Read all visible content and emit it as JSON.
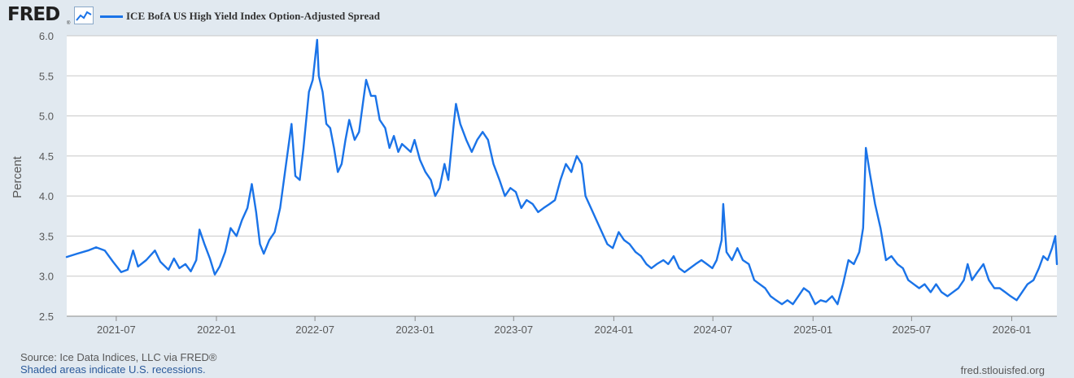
{
  "header": {
    "logo_text": "FRED",
    "logo_reg": "®",
    "legend_label": "ICE BofA US High Yield Index Option-Adjusted Spread",
    "series_color": "#1a73e8",
    "logo_icon": "line-chart-icon"
  },
  "footer": {
    "source": "Source: Ice Data Indices, LLC via FRED®",
    "recession_note": "Shaded areas indicate U.S. recessions.",
    "site_url": "fred.stlouisfed.org"
  },
  "chart_data": {
    "type": "line",
    "title": "",
    "xlabel": "",
    "ylabel": "Percent",
    "ylim": [
      2.5,
      6.0
    ],
    "xlim": [
      "2021-04-01",
      "2026-03-25"
    ],
    "yticks": [
      "2.5",
      "3.0",
      "3.5",
      "4.0",
      "4.5",
      "5.0",
      "5.5",
      "6.0"
    ],
    "xticks": [
      {
        "date": "2021-07-01",
        "label": "2021-07"
      },
      {
        "date": "2022-01-01",
        "label": "2022-01"
      },
      {
        "date": "2022-07-01",
        "label": "2022-07"
      },
      {
        "date": "2023-01-01",
        "label": "2023-01"
      },
      {
        "date": "2023-07-01",
        "label": "2023-07"
      },
      {
        "date": "2024-01-01",
        "label": "2024-01"
      },
      {
        "date": "2024-07-01",
        "label": "2024-07"
      },
      {
        "date": "2025-01-01",
        "label": "2025-01"
      },
      {
        "date": "2025-07-01",
        "label": "2025-07"
      },
      {
        "date": "2026-01-01",
        "label": "2026-01"
      }
    ],
    "grid": true,
    "legend": "top-left",
    "series": [
      {
        "name": "ICE BofA US High Yield Index Option-Adjusted Spread",
        "color": "#1a73e8",
        "points": [
          [
            "2021-04-01",
            3.24
          ],
          [
            "2021-04-20",
            3.28
          ],
          [
            "2021-05-10",
            3.32
          ],
          [
            "2021-05-25",
            3.36
          ],
          [
            "2021-06-10",
            3.32
          ],
          [
            "2021-06-25",
            3.18
          ],
          [
            "2021-07-10",
            3.05
          ],
          [
            "2021-07-22",
            3.08
          ],
          [
            "2021-08-01",
            3.32
          ],
          [
            "2021-08-10",
            3.12
          ],
          [
            "2021-08-25",
            3.2
          ],
          [
            "2021-09-10",
            3.32
          ],
          [
            "2021-09-20",
            3.18
          ],
          [
            "2021-10-05",
            3.08
          ],
          [
            "2021-10-15",
            3.22
          ],
          [
            "2021-10-25",
            3.1
          ],
          [
            "2021-11-05",
            3.15
          ],
          [
            "2021-11-15",
            3.06
          ],
          [
            "2021-11-25",
            3.2
          ],
          [
            "2021-12-01",
            3.58
          ],
          [
            "2021-12-10",
            3.4
          ],
          [
            "2021-12-20",
            3.22
          ],
          [
            "2021-12-29",
            3.02
          ],
          [
            "2022-01-07",
            3.12
          ],
          [
            "2022-01-17",
            3.3
          ],
          [
            "2022-01-27",
            3.6
          ],
          [
            "2022-02-07",
            3.5
          ],
          [
            "2022-02-17",
            3.7
          ],
          [
            "2022-02-27",
            3.85
          ],
          [
            "2022-03-07",
            4.15
          ],
          [
            "2022-03-15",
            3.8
          ],
          [
            "2022-03-22",
            3.4
          ],
          [
            "2022-03-29",
            3.28
          ],
          [
            "2022-04-08",
            3.45
          ],
          [
            "2022-04-18",
            3.55
          ],
          [
            "2022-04-28",
            3.85
          ],
          [
            "2022-05-09",
            4.4
          ],
          [
            "2022-05-19",
            4.9
          ],
          [
            "2022-05-26",
            4.25
          ],
          [
            "2022-06-03",
            4.2
          ],
          [
            "2022-06-10",
            4.6
          ],
          [
            "2022-06-20",
            5.3
          ],
          [
            "2022-06-27",
            5.45
          ],
          [
            "2022-07-05",
            5.95
          ],
          [
            "2022-07-08",
            5.5
          ],
          [
            "2022-07-15",
            5.3
          ],
          [
            "2022-07-22",
            4.9
          ],
          [
            "2022-07-29",
            4.85
          ],
          [
            "2022-08-05",
            4.6
          ],
          [
            "2022-08-12",
            4.3
          ],
          [
            "2022-08-19",
            4.4
          ],
          [
            "2022-08-26",
            4.7
          ],
          [
            "2022-09-02",
            4.95
          ],
          [
            "2022-09-12",
            4.7
          ],
          [
            "2022-09-20",
            4.8
          ],
          [
            "2022-09-28",
            5.2
          ],
          [
            "2022-10-03",
            5.45
          ],
          [
            "2022-10-12",
            5.25
          ],
          [
            "2022-10-20",
            5.25
          ],
          [
            "2022-10-28",
            4.95
          ],
          [
            "2022-11-07",
            4.85
          ],
          [
            "2022-11-15",
            4.6
          ],
          [
            "2022-11-23",
            4.75
          ],
          [
            "2022-12-01",
            4.55
          ],
          [
            "2022-12-08",
            4.65
          ],
          [
            "2022-12-16",
            4.6
          ],
          [
            "2022-12-24",
            4.55
          ],
          [
            "2022-12-31",
            4.7
          ],
          [
            "2023-01-10",
            4.45
          ],
          [
            "2023-01-20",
            4.3
          ],
          [
            "2023-01-30",
            4.2
          ],
          [
            "2023-02-07",
            4.0
          ],
          [
            "2023-02-15",
            4.1
          ],
          [
            "2023-02-24",
            4.4
          ],
          [
            "2023-03-03",
            4.2
          ],
          [
            "2023-03-13",
            4.9
          ],
          [
            "2023-03-17",
            5.15
          ],
          [
            "2023-03-25",
            4.9
          ],
          [
            "2023-04-05",
            4.7
          ],
          [
            "2023-04-15",
            4.55
          ],
          [
            "2023-04-25",
            4.7
          ],
          [
            "2023-05-05",
            4.8
          ],
          [
            "2023-05-15",
            4.7
          ],
          [
            "2023-05-25",
            4.4
          ],
          [
            "2023-06-05",
            4.2
          ],
          [
            "2023-06-15",
            4.0
          ],
          [
            "2023-06-25",
            4.1
          ],
          [
            "2023-07-05",
            4.05
          ],
          [
            "2023-07-15",
            3.85
          ],
          [
            "2023-07-25",
            3.95
          ],
          [
            "2023-08-05",
            3.9
          ],
          [
            "2023-08-15",
            3.8
          ],
          [
            "2023-08-25",
            3.85
          ],
          [
            "2023-09-05",
            3.9
          ],
          [
            "2023-09-15",
            3.95
          ],
          [
            "2023-09-25",
            4.2
          ],
          [
            "2023-10-05",
            4.4
          ],
          [
            "2023-10-15",
            4.3
          ],
          [
            "2023-10-25",
            4.5
          ],
          [
            "2023-11-03",
            4.4
          ],
          [
            "2023-11-10",
            4.0
          ],
          [
            "2023-11-20",
            3.85
          ],
          [
            "2023-11-30",
            3.7
          ],
          [
            "2023-12-10",
            3.55
          ],
          [
            "2023-12-20",
            3.4
          ],
          [
            "2023-12-30",
            3.35
          ],
          [
            "2024-01-10",
            3.55
          ],
          [
            "2024-01-20",
            3.45
          ],
          [
            "2024-01-30",
            3.4
          ],
          [
            "2024-02-10",
            3.3
          ],
          [
            "2024-02-20",
            3.25
          ],
          [
            "2024-03-01",
            3.15
          ],
          [
            "2024-03-10",
            3.1
          ],
          [
            "2024-03-20",
            3.15
          ],
          [
            "2024-04-01",
            3.2
          ],
          [
            "2024-04-10",
            3.15
          ],
          [
            "2024-04-20",
            3.25
          ],
          [
            "2024-04-30",
            3.1
          ],
          [
            "2024-05-10",
            3.05
          ],
          [
            "2024-05-20",
            3.1
          ],
          [
            "2024-05-30",
            3.15
          ],
          [
            "2024-06-10",
            3.2
          ],
          [
            "2024-06-20",
            3.15
          ],
          [
            "2024-06-30",
            3.1
          ],
          [
            "2024-07-08",
            3.2
          ],
          [
            "2024-07-17",
            3.45
          ],
          [
            "2024-07-20",
            3.9
          ],
          [
            "2024-07-26",
            3.3
          ],
          [
            "2024-08-05",
            3.2
          ],
          [
            "2024-08-15",
            3.35
          ],
          [
            "2024-08-25",
            3.2
          ],
          [
            "2024-09-05",
            3.15
          ],
          [
            "2024-09-15",
            2.95
          ],
          [
            "2024-09-25",
            2.9
          ],
          [
            "2024-10-05",
            2.85
          ],
          [
            "2024-10-15",
            2.75
          ],
          [
            "2024-10-25",
            2.7
          ],
          [
            "2024-11-05",
            2.65
          ],
          [
            "2024-11-15",
            2.7
          ],
          [
            "2024-11-25",
            2.65
          ],
          [
            "2024-12-05",
            2.75
          ],
          [
            "2024-12-15",
            2.85
          ],
          [
            "2024-12-25",
            2.8
          ],
          [
            "2025-01-05",
            2.65
          ],
          [
            "2025-01-15",
            2.7
          ],
          [
            "2025-01-25",
            2.68
          ],
          [
            "2025-02-05",
            2.75
          ],
          [
            "2025-02-15",
            2.65
          ],
          [
            "2025-02-25",
            2.9
          ],
          [
            "2025-03-07",
            3.2
          ],
          [
            "2025-03-17",
            3.15
          ],
          [
            "2025-03-27",
            3.3
          ],
          [
            "2025-04-03",
            3.6
          ],
          [
            "2025-04-08",
            4.6
          ],
          [
            "2025-04-15",
            4.3
          ],
          [
            "2025-04-25",
            3.9
          ],
          [
            "2025-05-05",
            3.6
          ],
          [
            "2025-05-15",
            3.2
          ],
          [
            "2025-05-25",
            3.25
          ],
          [
            "2025-06-05",
            3.15
          ],
          [
            "2025-06-15",
            3.1
          ],
          [
            "2025-06-25",
            2.95
          ],
          [
            "2025-07-05",
            2.9
          ],
          [
            "2025-07-15",
            2.85
          ],
          [
            "2025-07-25",
            2.9
          ],
          [
            "2025-08-05",
            2.8
          ],
          [
            "2025-08-15",
            2.9
          ],
          [
            "2025-08-25",
            2.8
          ],
          [
            "2025-09-05",
            2.75
          ],
          [
            "2025-09-15",
            2.8
          ],
          [
            "2025-09-25",
            2.85
          ],
          [
            "2025-10-05",
            2.95
          ],
          [
            "2025-10-12",
            3.15
          ],
          [
            "2025-10-20",
            2.95
          ],
          [
            "2025-10-30",
            3.05
          ],
          [
            "2025-11-10",
            3.15
          ],
          [
            "2025-11-20",
            2.95
          ],
          [
            "2025-11-30",
            2.85
          ],
          [
            "2025-12-10",
            2.85
          ],
          [
            "2025-12-20",
            2.8
          ],
          [
            "2025-12-30",
            2.75
          ],
          [
            "2026-01-10",
            2.7
          ],
          [
            "2026-01-20",
            2.8
          ],
          [
            "2026-01-30",
            2.9
          ],
          [
            "2026-02-10",
            2.95
          ],
          [
            "2026-02-20",
            3.1
          ],
          [
            "2026-02-28",
            3.25
          ],
          [
            "2026-03-08",
            3.2
          ],
          [
            "2026-03-16",
            3.35
          ],
          [
            "2026-03-22",
            3.5
          ],
          [
            "2026-03-25",
            3.15
          ]
        ]
      }
    ]
  }
}
